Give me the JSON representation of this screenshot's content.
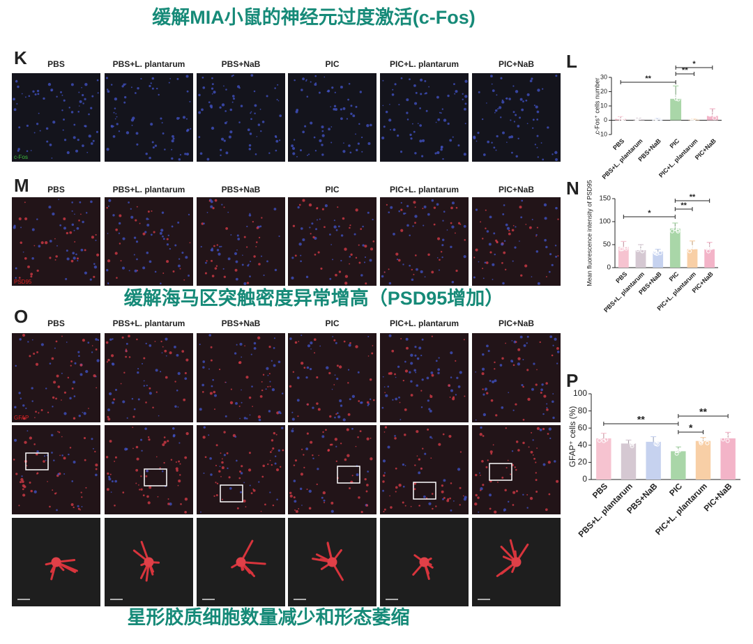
{
  "headings": [
    "缓解MIA小鼠的神经元过度激活(c-Fos)",
    "缓解海马区突触密度异常增高（PSD95增加）",
    "星形胶质细胞数量减少和形态萎缩"
  ],
  "image_panels": [
    {
      "panel": "K",
      "stain": "c-Fos",
      "columns": [
        "PBS",
        "PBS+L. plantarum",
        "PBS+NaB",
        "PIC",
        "PIC+L. plantarum",
        "PIC+NaB"
      ]
    },
    {
      "panel": "M",
      "stain": "PSD95",
      "columns": [
        "PBS",
        "PBS+L. plantarum",
        "PBS+NaB",
        "PIC",
        "PIC+L. plantarum",
        "PIC+NaB"
      ]
    },
    {
      "panel": "O",
      "stain": "GFAP",
      "columns": [
        "PBS",
        "PBS+L. plantarum",
        "PBS+NaB",
        "PIC",
        "PIC+L. plantarum",
        "PIC+NaB"
      ]
    }
  ],
  "chart_data": [
    {
      "type": "bar",
      "panel": "L",
      "ylabel": "c-Fos⁺ cells number",
      "categories": [
        "PBS",
        "PBS+L. plantarum",
        "PBS+NaB",
        "PIC",
        "PIC+L. plantarum",
        "PIC+NaB"
      ],
      "values": [
        1,
        0.5,
        0.3,
        15,
        0.3,
        3
      ],
      "errors": [
        1.5,
        1,
        1,
        9,
        0.5,
        5
      ],
      "colors": [
        "#f6c3d0",
        "#d5c8d2",
        "#c6d2ef",
        "#a9d6a8",
        "#f8cfa6",
        "#f3b4c8"
      ],
      "ylim": [
        -10,
        30
      ],
      "yticks": [
        -10,
        0,
        10,
        20,
        30
      ],
      "annotations": [
        "**",
        "**",
        "*"
      ]
    },
    {
      "type": "bar",
      "panel": "N",
      "ylabel": "Mean fluorescence intensity of PSD95",
      "categories": [
        "PBS",
        "PBS+L. plantarum",
        "PBS+NaB",
        "PIC",
        "PIC+L. plantarum",
        "PIC+NaB"
      ],
      "values": [
        45,
        38,
        35,
        85,
        40,
        40
      ],
      "errors": [
        12,
        12,
        5,
        12,
        18,
        15
      ],
      "colors": [
        "#f6c3d0",
        "#d5c8d2",
        "#c6d2ef",
        "#a9d6a8",
        "#f8cfa6",
        "#f3b4c8"
      ],
      "ylim": [
        0,
        150
      ],
      "yticks": [
        0,
        50,
        100,
        150
      ],
      "annotations": [
        "*",
        "**",
        "**"
      ]
    },
    {
      "type": "bar",
      "panel": "P",
      "ylabel": "GFAP⁺ cells (%)",
      "categories": [
        "PBS",
        "PBS+L. plantarum",
        "PBS+NaB",
        "PIC",
        "PIC+L. plantarum",
        "PIC+NaB"
      ],
      "values": [
        48,
        42,
        44,
        33,
        45,
        48
      ],
      "errors": [
        6,
        4,
        6,
        5,
        4,
        7
      ],
      "colors": [
        "#f6c3d0",
        "#d5c8d2",
        "#c6d2ef",
        "#a9d6a8",
        "#f8cfa6",
        "#f3b4c8"
      ],
      "ylim": [
        0,
        100
      ],
      "yticks": [
        0,
        20,
        40,
        60,
        80,
        100
      ],
      "annotations": [
        "**",
        "*",
        "**"
      ]
    }
  ]
}
